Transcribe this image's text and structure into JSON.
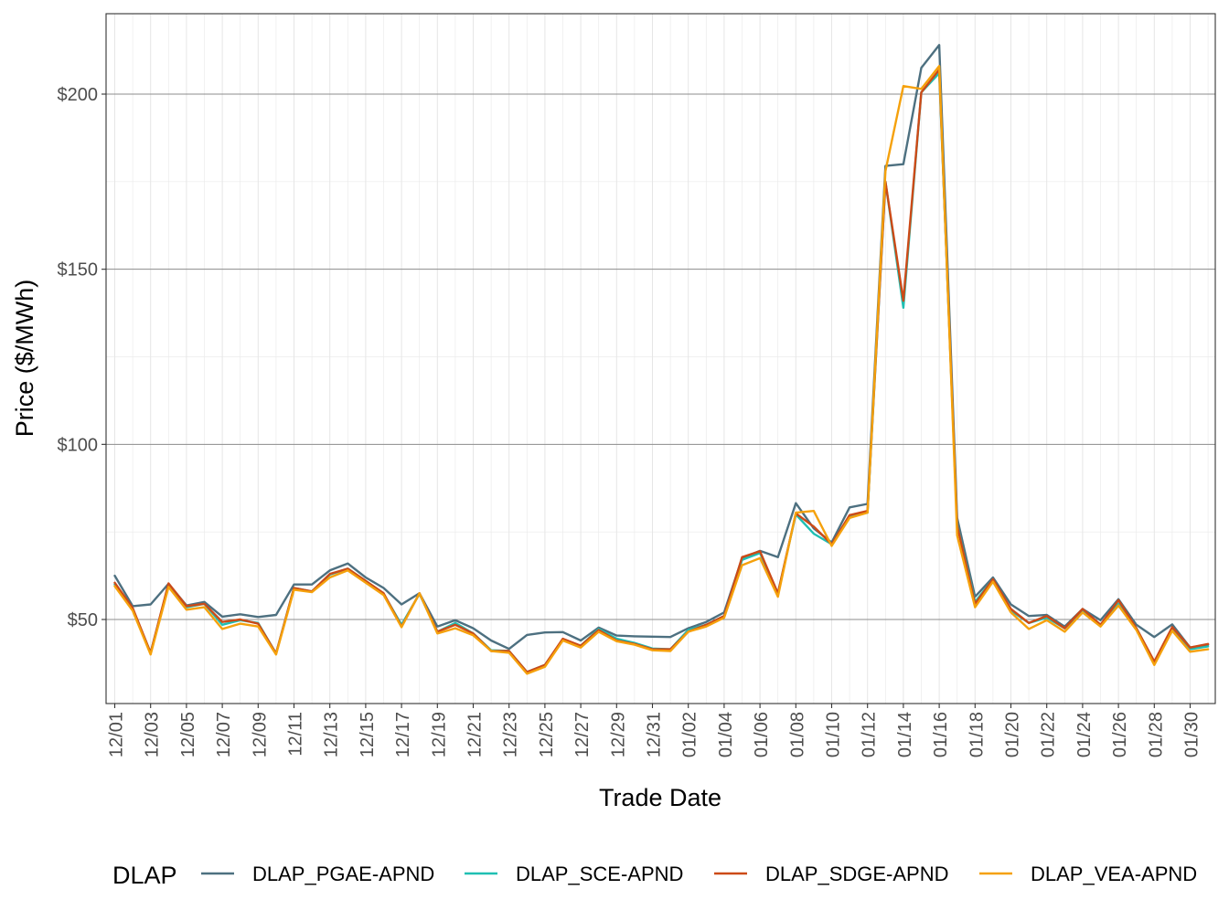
{
  "chart_data": {
    "type": "line",
    "title": "",
    "xlabel": "Trade Date",
    "ylabel": "Price ($/MWh)",
    "ylim": [
      25,
      223
    ],
    "grid": true,
    "legend_placement": "bottom",
    "legend_title": "DLAP",
    "y_ticks": [
      {
        "value": 50,
        "label": "$50"
      },
      {
        "value": 100,
        "label": "$100"
      },
      {
        "value": 150,
        "label": "$150"
      },
      {
        "value": 200,
        "label": "$200"
      }
    ],
    "x": [
      "12/01",
      "12/02",
      "12/03",
      "12/04",
      "12/05",
      "12/06",
      "12/07",
      "12/08",
      "12/09",
      "12/10",
      "12/11",
      "12/12",
      "12/13",
      "12/14",
      "12/15",
      "12/16",
      "12/17",
      "12/18",
      "12/19",
      "12/20",
      "12/21",
      "12/22",
      "12/23",
      "12/24",
      "12/25",
      "12/26",
      "12/27",
      "12/28",
      "12/29",
      "12/30",
      "12/31",
      "01/01",
      "01/02",
      "01/03",
      "01/04",
      "01/05",
      "01/06",
      "01/07",
      "01/08",
      "01/09",
      "01/10",
      "01/11",
      "01/12",
      "01/13",
      "01/14",
      "01/15",
      "01/16",
      "01/17",
      "01/18",
      "01/19",
      "01/20",
      "01/21",
      "01/22",
      "01/23",
      "01/24",
      "01/25",
      "01/26",
      "01/27",
      "01/28",
      "01/29",
      "01/30",
      "01/31"
    ],
    "x_tick_labels": [
      "12/01",
      "12/03",
      "12/05",
      "12/07",
      "12/09",
      "12/11",
      "12/13",
      "12/15",
      "12/17",
      "12/19",
      "12/21",
      "12/23",
      "12/25",
      "12/27",
      "12/29",
      "12/31",
      "01/02",
      "01/04",
      "01/06",
      "01/08",
      "01/10",
      "01/12",
      "01/14",
      "01/16",
      "01/18",
      "01/20",
      "01/22",
      "01/24",
      "01/26",
      "01/28",
      "01/30"
    ],
    "series": [
      {
        "name": "DLAP_PGAE-APND",
        "color": "#4d7080",
        "values": [
          62.5,
          53.8,
          54.3,
          60.2,
          54.0,
          55.0,
          50.8,
          51.5,
          50.7,
          51.3,
          60.0,
          60.0,
          64.0,
          66.0,
          62.0,
          59.0,
          54.3,
          57.5,
          48.0,
          49.8,
          47.5,
          44.0,
          41.6,
          45.6,
          46.3,
          46.4,
          44.0,
          47.7,
          45.4,
          45.2,
          45.1,
          45.0,
          47.5,
          49.3,
          52.0,
          67.5,
          69.6,
          67.8,
          83.2,
          76.0,
          72.0,
          82.0,
          83.0,
          179.5,
          180.0,
          207.5,
          214.0,
          79.0,
          56.5,
          62.0,
          54.3,
          51.0,
          51.3,
          48.0,
          53.0,
          49.8,
          55.8,
          48.5,
          45.0,
          48.6,
          42.0,
          42.8
        ]
      },
      {
        "name": "DLAP_SCE-APND",
        "color": "#1fbfb3",
        "values": [
          60.0,
          53.0,
          40.5,
          60.0,
          53.5,
          54.5,
          48.5,
          49.8,
          49.0,
          40.3,
          59.0,
          58.0,
          62.8,
          64.5,
          61.0,
          57.3,
          48.5,
          57.3,
          46.5,
          49.0,
          46.0,
          41.2,
          41.0,
          35.0,
          37.0,
          44.3,
          42.5,
          47.3,
          44.5,
          43.3,
          41.7,
          41.5,
          47.0,
          48.5,
          51.0,
          67.0,
          69.0,
          57.5,
          80.0,
          74.5,
          71.5,
          79.5,
          80.5,
          175.0,
          139.0,
          200.5,
          206.0,
          77.0,
          55.0,
          61.5,
          52.5,
          49.0,
          50.5,
          47.5,
          52.5,
          48.5,
          54.5,
          47.5,
          37.8,
          47.5,
          41.5,
          42.3
        ]
      },
      {
        "name": "DLAP_SDGE-APND",
        "color": "#cc4a17",
        "values": [
          60.5,
          53.3,
          40.5,
          60.3,
          53.8,
          54.5,
          49.3,
          50.0,
          48.8,
          40.3,
          59.0,
          58.0,
          63.0,
          64.5,
          61.0,
          57.5,
          48.0,
          57.5,
          46.5,
          48.5,
          46.0,
          41.0,
          41.0,
          35.0,
          37.0,
          44.5,
          42.5,
          47.0,
          44.0,
          43.0,
          41.5,
          41.5,
          46.5,
          48.5,
          51.0,
          67.8,
          69.5,
          57.5,
          80.3,
          76.5,
          71.5,
          79.8,
          81.0,
          175.0,
          141.0,
          200.5,
          207.0,
          76.8,
          54.5,
          61.5,
          53.0,
          49.0,
          51.0,
          47.5,
          53.0,
          48.5,
          55.5,
          47.5,
          38.0,
          47.8,
          42.0,
          43.0
        ]
      },
      {
        "name": "DLAP_VEA-APND",
        "color": "#f5a10c",
        "values": [
          59.5,
          52.5,
          40.0,
          59.3,
          52.8,
          53.5,
          47.3,
          48.8,
          48.0,
          40.0,
          58.5,
          57.8,
          62.0,
          64.0,
          60.5,
          57.0,
          47.8,
          57.5,
          46.0,
          47.5,
          45.5,
          41.0,
          40.5,
          34.5,
          36.5,
          44.0,
          42.0,
          46.5,
          43.8,
          42.8,
          41.2,
          41.0,
          46.5,
          48.0,
          50.5,
          65.5,
          67.5,
          56.5,
          80.5,
          81.0,
          71.0,
          79.0,
          80.5,
          178.0,
          202.3,
          201.5,
          208.0,
          74.0,
          53.5,
          60.8,
          52.0,
          47.3,
          49.8,
          46.5,
          52.0,
          48.0,
          54.0,
          47.0,
          37.0,
          46.8,
          40.8,
          41.5
        ]
      }
    ]
  }
}
